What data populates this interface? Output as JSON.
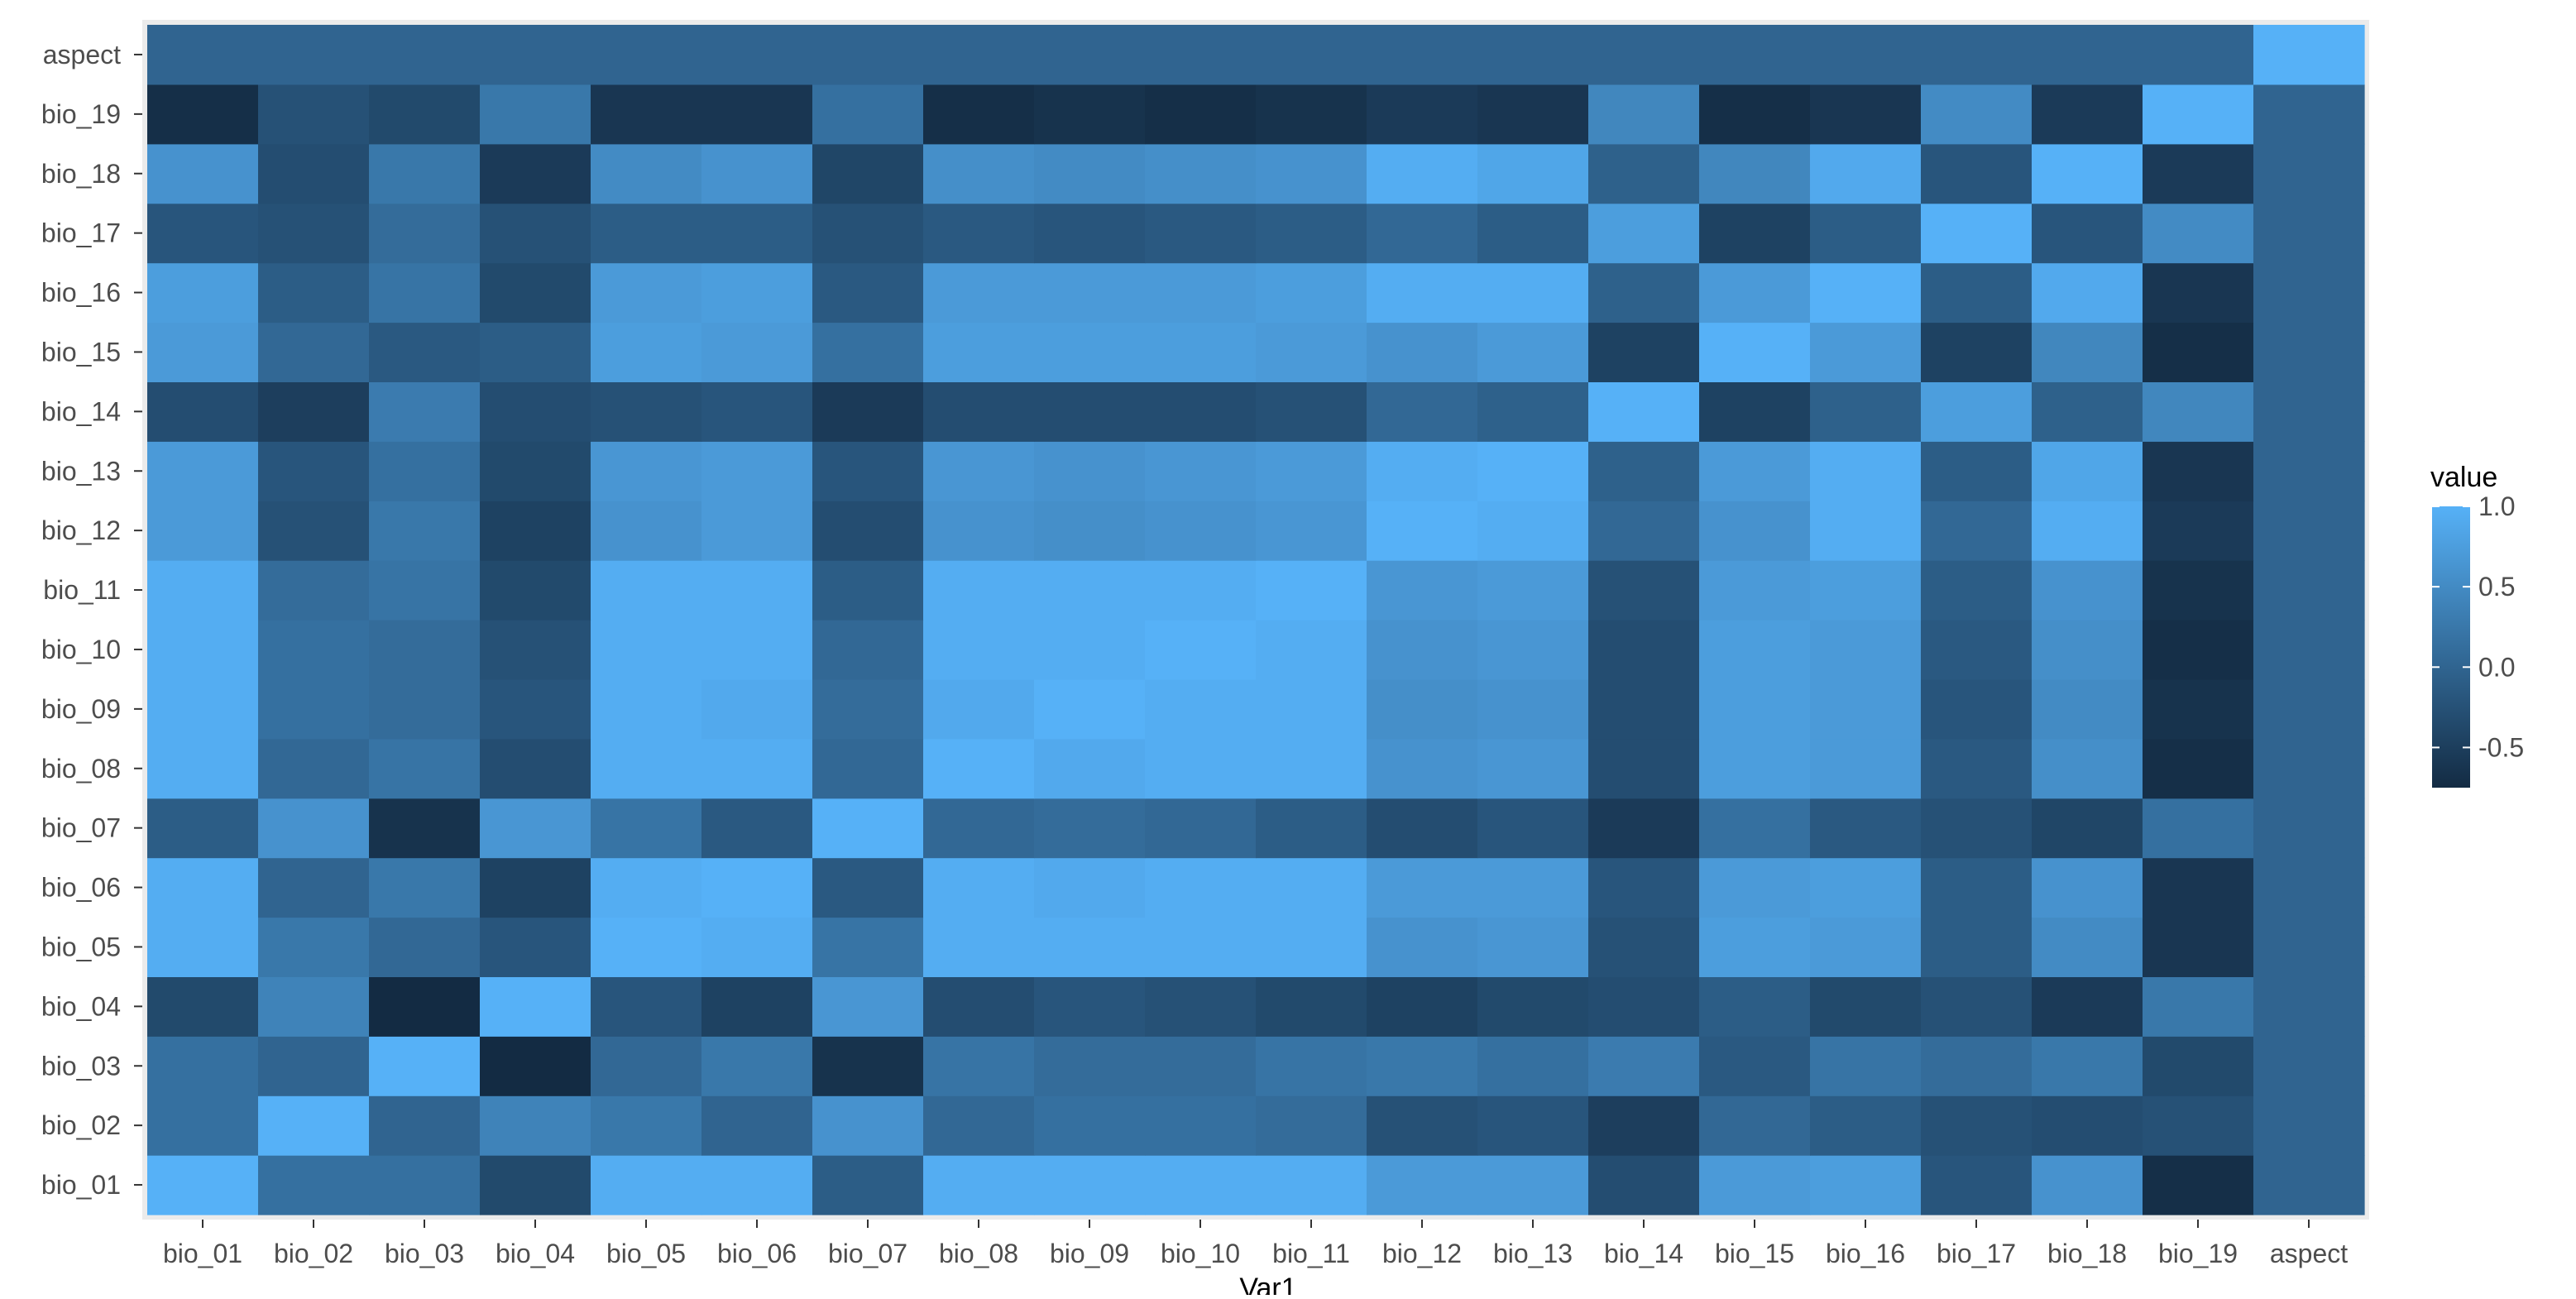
{
  "chart_data": {
    "type": "heatmap",
    "title": "",
    "xlabel": "Var1",
    "ylabel": "",
    "x_categories": [
      "bio_01",
      "bio_02",
      "bio_03",
      "bio_04",
      "bio_05",
      "bio_06",
      "bio_07",
      "bio_08",
      "bio_09",
      "bio_10",
      "bio_11",
      "bio_12",
      "bio_13",
      "bio_14",
      "bio_15",
      "bio_16",
      "bio_17",
      "bio_18",
      "bio_19",
      "aspect"
    ],
    "y_categories": [
      "bio_01",
      "bio_02",
      "bio_03",
      "bio_04",
      "bio_05",
      "bio_06",
      "bio_07",
      "bio_08",
      "bio_09",
      "bio_10",
      "bio_11",
      "bio_12",
      "bio_13",
      "bio_14",
      "bio_15",
      "bio_16",
      "bio_17",
      "bio_18",
      "bio_19",
      "aspect"
    ],
    "values": [
      [
        1.0,
        0.15,
        0.15,
        -0.35,
        0.95,
        0.95,
        -0.1,
        0.95,
        0.95,
        0.95,
        0.95,
        0.7,
        0.7,
        -0.3,
        0.7,
        0.75,
        -0.2,
        0.6,
        -0.7,
        0.0
      ],
      [
        0.15,
        1.0,
        0.0,
        0.4,
        0.25,
        0.0,
        0.6,
        0.05,
        0.15,
        0.15,
        0.1,
        -0.25,
        -0.2,
        -0.5,
        0.05,
        -0.1,
        -0.25,
        -0.3,
        -0.25,
        0.0
      ],
      [
        0.15,
        0.0,
        1.0,
        -0.75,
        0.05,
        0.25,
        -0.65,
        0.2,
        0.1,
        0.1,
        0.2,
        0.25,
        0.15,
        0.3,
        -0.15,
        0.2,
        0.1,
        0.25,
        -0.35,
        0.0
      ],
      [
        -0.35,
        0.4,
        -0.75,
        1.0,
        -0.2,
        -0.45,
        0.65,
        -0.3,
        -0.2,
        -0.25,
        -0.35,
        -0.45,
        -0.35,
        -0.3,
        -0.1,
        -0.35,
        -0.25,
        -0.55,
        0.25,
        0.0
      ],
      [
        0.95,
        0.25,
        0.05,
        -0.2,
        1.0,
        0.95,
        0.2,
        0.95,
        0.95,
        0.95,
        0.95,
        0.6,
        0.65,
        -0.25,
        0.75,
        0.7,
        -0.1,
        0.5,
        -0.6,
        0.0
      ],
      [
        0.95,
        0.0,
        0.25,
        -0.45,
        0.95,
        1.0,
        -0.15,
        0.95,
        0.9,
        0.95,
        0.95,
        0.7,
        0.7,
        -0.2,
        0.7,
        0.75,
        -0.1,
        0.6,
        -0.6,
        0.0
      ],
      [
        -0.1,
        0.6,
        -0.65,
        0.65,
        0.2,
        -0.15,
        1.0,
        0.05,
        0.1,
        0.05,
        -0.1,
        -0.3,
        -0.2,
        -0.55,
        0.15,
        -0.15,
        -0.25,
        -0.4,
        0.15,
        0.0
      ],
      [
        0.95,
        0.05,
        0.2,
        -0.3,
        0.95,
        0.95,
        0.05,
        1.0,
        0.9,
        0.95,
        0.95,
        0.6,
        0.65,
        -0.3,
        0.75,
        0.7,
        -0.15,
        0.55,
        -0.7,
        0.0
      ],
      [
        0.95,
        0.15,
        0.1,
        -0.2,
        0.95,
        0.9,
        0.1,
        0.9,
        1.0,
        0.95,
        0.95,
        0.55,
        0.6,
        -0.3,
        0.75,
        0.7,
        -0.2,
        0.5,
        -0.65,
        0.0
      ],
      [
        0.95,
        0.15,
        0.1,
        -0.25,
        0.95,
        0.95,
        0.05,
        0.95,
        0.95,
        1.0,
        0.95,
        0.6,
        0.65,
        -0.3,
        0.75,
        0.7,
        -0.15,
        0.55,
        -0.7,
        0.0
      ],
      [
        0.95,
        0.1,
        0.2,
        -0.35,
        0.95,
        0.95,
        -0.1,
        0.95,
        0.95,
        0.95,
        1.0,
        0.65,
        0.7,
        -0.25,
        0.7,
        0.75,
        -0.1,
        0.6,
        -0.65,
        0.0
      ],
      [
        0.7,
        -0.25,
        0.25,
        -0.45,
        0.6,
        0.7,
        -0.3,
        0.6,
        0.55,
        0.6,
        0.65,
        1.0,
        0.95,
        0.05,
        0.6,
        0.95,
        0.05,
        0.95,
        -0.55,
        0.0
      ],
      [
        0.7,
        -0.2,
        0.15,
        -0.35,
        0.65,
        0.7,
        -0.2,
        0.65,
        0.6,
        0.65,
        0.7,
        0.95,
        1.0,
        -0.05,
        0.7,
        0.95,
        -0.1,
        0.85,
        -0.6,
        0.0
      ],
      [
        -0.3,
        -0.5,
        0.3,
        -0.3,
        -0.25,
        -0.2,
        -0.55,
        -0.3,
        -0.3,
        -0.3,
        -0.25,
        0.05,
        -0.05,
        1.0,
        -0.45,
        -0.05,
        0.75,
        -0.05,
        0.45,
        0.0
      ],
      [
        0.7,
        0.05,
        -0.15,
        -0.1,
        0.75,
        0.7,
        0.15,
        0.75,
        0.75,
        0.75,
        0.7,
        0.6,
        0.7,
        -0.45,
        1.0,
        0.7,
        -0.45,
        0.45,
        -0.7,
        0.0
      ],
      [
        0.75,
        -0.1,
        0.2,
        -0.35,
        0.7,
        0.75,
        -0.15,
        0.7,
        0.7,
        0.7,
        0.75,
        0.95,
        0.95,
        -0.05,
        0.7,
        1.0,
        -0.1,
        0.9,
        -0.6,
        0.0
      ],
      [
        -0.2,
        -0.25,
        0.1,
        -0.25,
        -0.1,
        -0.1,
        -0.25,
        -0.15,
        -0.2,
        -0.15,
        -0.1,
        0.05,
        -0.1,
        0.75,
        -0.45,
        -0.1,
        1.0,
        -0.2,
        0.5,
        0.0
      ],
      [
        0.6,
        -0.3,
        0.25,
        -0.55,
        0.5,
        0.6,
        -0.4,
        0.55,
        0.5,
        0.55,
        0.6,
        0.95,
        0.85,
        -0.05,
        0.45,
        0.9,
        -0.2,
        1.0,
        -0.55,
        0.0
      ],
      [
        -0.7,
        -0.25,
        -0.35,
        0.25,
        -0.6,
        -0.6,
        0.15,
        -0.7,
        -0.65,
        -0.7,
        -0.65,
        -0.55,
        -0.6,
        0.45,
        -0.7,
        -0.6,
        0.5,
        -0.55,
        1.0,
        0.0
      ],
      [
        0.0,
        0.0,
        0.0,
        0.0,
        0.0,
        0.0,
        0.0,
        0.0,
        0.0,
        0.0,
        0.0,
        0.0,
        0.0,
        0.0,
        0.0,
        0.0,
        0.0,
        0.0,
        0.0,
        1.0
      ]
    ],
    "value_range": [
      -0.75,
      1.0
    ],
    "legend": {
      "title": "value",
      "ticks": [
        "1.0",
        "0.5",
        "0.0",
        "-0.5"
      ],
      "placement": "right"
    },
    "colors": {
      "low": "#132b43",
      "high": "#56b1f7",
      "panel_bg": "#ebebeb",
      "grid": "#ffffff",
      "text": "#4d4d4d",
      "tick": "#333333"
    }
  }
}
